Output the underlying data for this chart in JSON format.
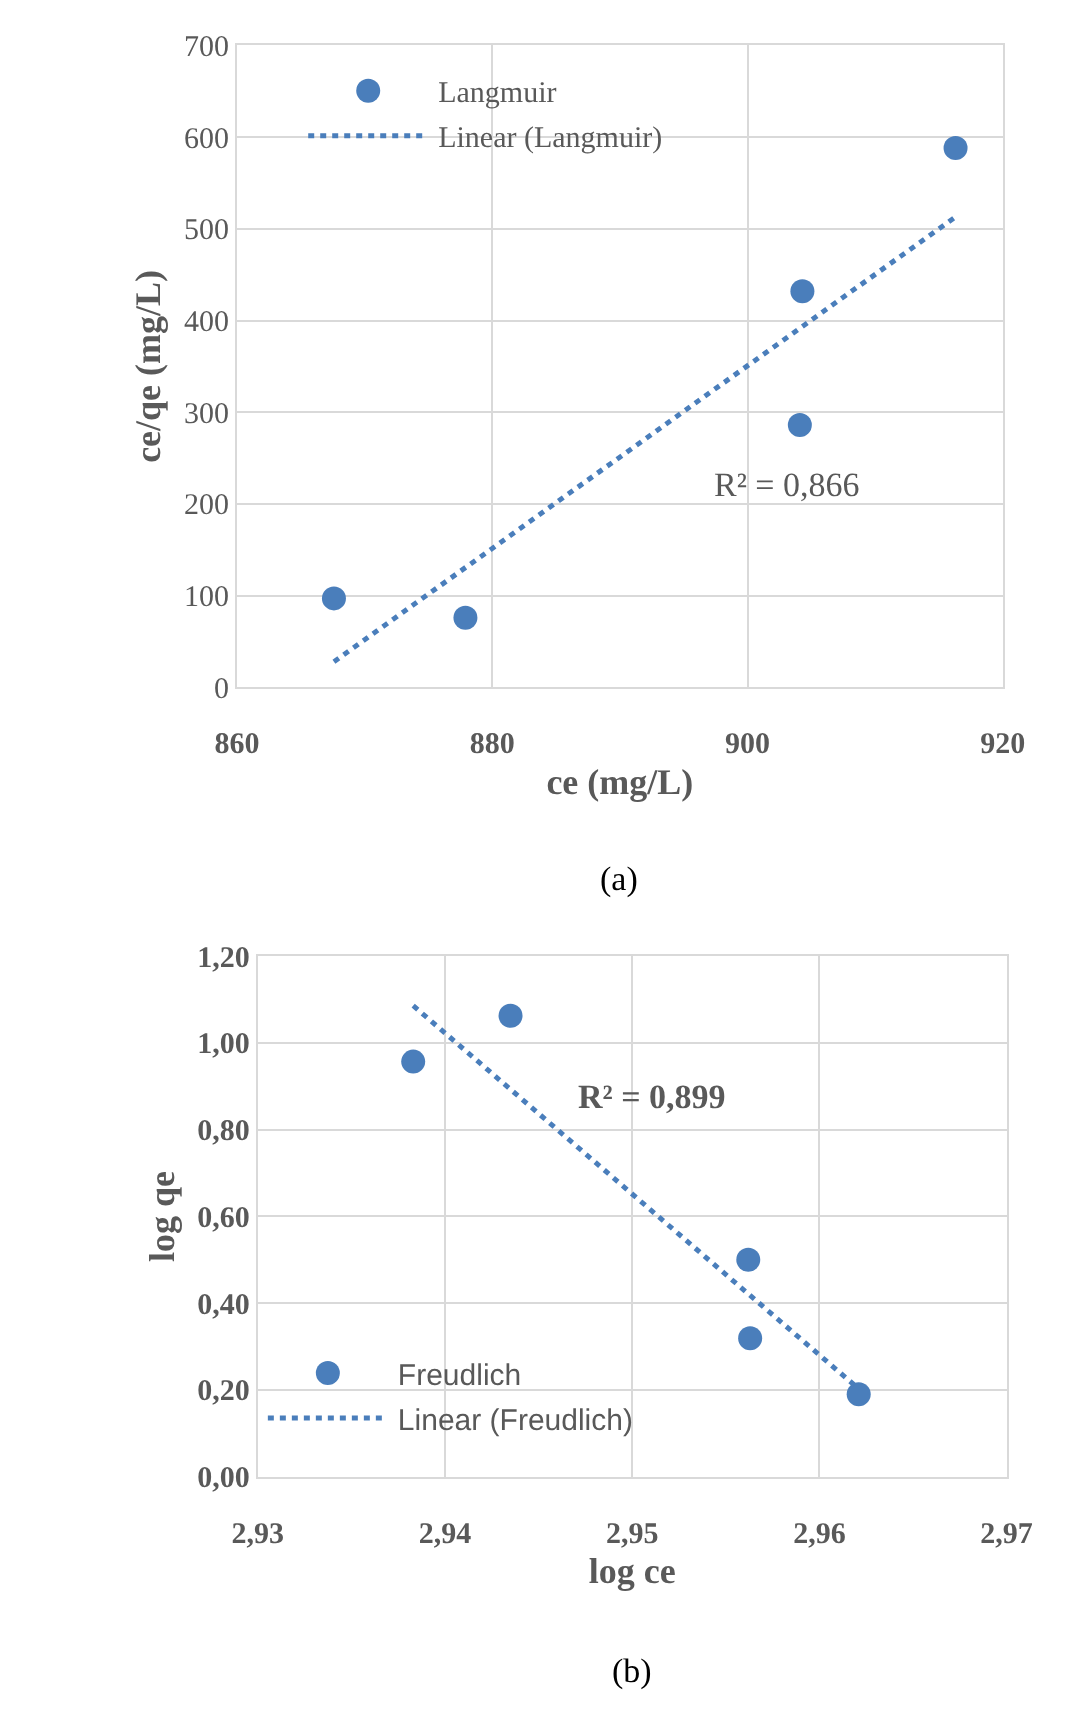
{
  "chart_data": [
    {
      "type": "scatter",
      "xlabel": "ce (mg/L)",
      "ylabel": "ce/qe (mg/L)",
      "xlim": [
        860,
        920
      ],
      "xticks": [
        860,
        880,
        900,
        920
      ],
      "ylim": [
        0,
        700
      ],
      "yticks": [
        0,
        100,
        200,
        300,
        400,
        500,
        600,
        700
      ],
      "grid": true,
      "legend": "top left",
      "series": [
        {
          "name": "Langmuir",
          "color": "#4a7ebb",
          "marker": "circle",
          "x": [
            867.6,
            877.9,
            904.3,
            904.1,
            916.3
          ],
          "values": [
            97,
            76,
            432,
            286,
            588
          ]
        },
        {
          "name": "Linear (Langmuir)",
          "color": "#4a7ebb",
          "type": "line",
          "line_style": "dotted",
          "x": [
            867.6,
            916.3
          ],
          "values": [
            28,
            513
          ]
        }
      ],
      "annotations": [
        "R² = 0,866",
        "(a)"
      ]
    },
    {
      "type": "scatter",
      "xlabel": "log ce",
      "ylabel": "log qe",
      "xlim": [
        2.93,
        2.97
      ],
      "xticks": [
        {
          "value": 2.93,
          "label": "2,93"
        },
        {
          "value": 2.94,
          "label": "2,94"
        },
        {
          "value": 2.95,
          "label": "2,95"
        },
        {
          "value": 2.96,
          "label": "2,96"
        },
        {
          "value": 2.97,
          "label": "2,97"
        }
      ],
      "ylim": [
        0,
        1.2
      ],
      "yticks": [
        {
          "value": 0,
          "label": "0,00"
        },
        {
          "value": 0.2,
          "label": "0,20"
        },
        {
          "value": 0.4,
          "label": "0,40"
        },
        {
          "value": 0.6,
          "label": "0,60"
        },
        {
          "value": 0.8,
          "label": "0,80"
        },
        {
          "value": 1.0,
          "label": "1,00"
        },
        {
          "value": 1.2,
          "label": "1,20"
        }
      ],
      "grid": true,
      "legend": "bottom left",
      "series": [
        {
          "name": "Freudlich",
          "color": "#4a7ebb",
          "marker": "circle",
          "x": [
            2.9383,
            2.9435,
            2.9562,
            2.9563,
            2.9621
          ],
          "values": [
            0.957,
            1.063,
            0.5,
            0.319,
            0.19
          ]
        },
        {
          "name": "Linear (Freudlich)",
          "color": "#4a7ebb",
          "type": "line",
          "line_style": "dotted",
          "x": [
            2.9383,
            2.962
          ],
          "values": [
            1.086,
            0.206
          ]
        }
      ],
      "annotations": [
        "R² = 0,899",
        "(b)"
      ]
    }
  ]
}
